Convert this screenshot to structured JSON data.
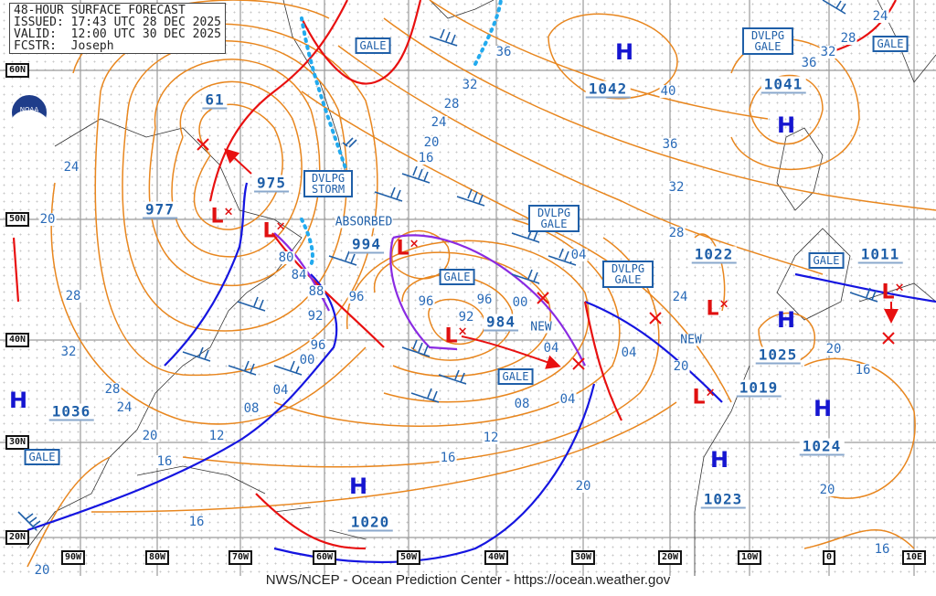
{
  "header": {
    "lines": [
      "48-HOUR SURFACE FORECAST",
      "ISSUED: 17:43 UTC 28 DEC 2025",
      "VALID:  12:00 UTC 30 DEC 2025",
      "FCSTR:  Joseph"
    ]
  },
  "footer": "NWS/NCEP - Ocean Prediction Center - https://ocean.weather.gov",
  "logo": "NOAA",
  "colors": {
    "isobar": "#e8861e",
    "cold_front": "#1515e0",
    "warm_front": "#e81010",
    "occluded_front": "#8a2be2",
    "ice_edge": "#22aaee",
    "labels": "#1f5fa8",
    "high": "#1515d0",
    "low": "#e01010"
  },
  "lat_labels": [
    "60N",
    "50N",
    "40N",
    "30N",
    "20N"
  ],
  "lon_labels": [
    "90W",
    "80W",
    "70W",
    "60W",
    "50W",
    "40W",
    "30W",
    "20W",
    "10W",
    "0",
    "10E"
  ],
  "highs": [
    {
      "symbol": "H",
      "pressure": "1042"
    },
    {
      "symbol": "H",
      "pressure": "1041"
    },
    {
      "symbol": "H",
      "pressure": "1025"
    },
    {
      "symbol": "H",
      "pressure": "1036"
    },
    {
      "symbol": "H",
      "pressure": "1020"
    },
    {
      "symbol": "H",
      "pressure": "1023"
    },
    {
      "symbol": "H",
      "pressure": "1024"
    }
  ],
  "lows": [
    {
      "symbol": "L",
      "pressure": "977"
    },
    {
      "symbol": "L",
      "pressure": "975"
    },
    {
      "symbol": "L",
      "pressure": "994"
    },
    {
      "symbol": "L",
      "pressure": "984"
    },
    {
      "symbol": "L",
      "pressure": "1022"
    },
    {
      "symbol": "L",
      "pressure": "1019"
    },
    {
      "symbol": "L",
      "pressure": "1011"
    }
  ],
  "other_pressure": [
    "61"
  ],
  "warnings": [
    "GALE",
    "DVLPG GALE",
    "GALE",
    "DVLPG STORM",
    "DVLPG GALE",
    "GALE",
    "DVLPG GALE",
    "GALE",
    "GALE",
    "GALE"
  ],
  "annotations": [
    "ABSORBED",
    "NEW",
    "NEW"
  ],
  "isobar_labels": [
    "24",
    "28",
    "36",
    "32",
    "36",
    "32",
    "40",
    "28",
    "24",
    "20",
    "16",
    "36",
    "32",
    "28",
    "24",
    "20",
    "80",
    "84",
    "88",
    "92",
    "96",
    "00",
    "04",
    "08",
    "12",
    "16",
    "20",
    "24",
    "28",
    "32",
    "28",
    "20",
    "24",
    "96",
    "96",
    "96",
    "92",
    "00",
    "04",
    "08",
    "12",
    "16",
    "20",
    "04",
    "04",
    "04",
    "20",
    "20",
    "16",
    "16",
    "16",
    "20"
  ]
}
